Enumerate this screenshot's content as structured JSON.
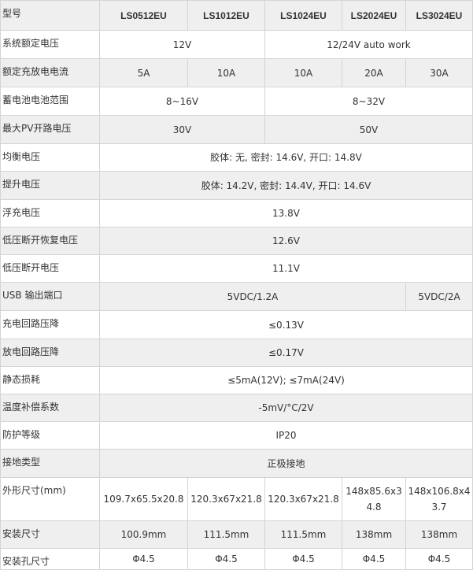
{
  "table": {
    "header": [
      "型号",
      "LS0512EU",
      "LS1012EU",
      "LS1024EU",
      "LS2024EU",
      "LS3024EU"
    ],
    "rows": [
      [
        "系统额定电压",
        "12V",
        "12/24V auto work"
      ],
      [
        "额定充放电电流",
        "5A",
        "10A",
        "10A",
        "20A",
        "30A"
      ],
      [
        "蓄电池电池范围",
        "8~16V",
        "8~32V"
      ],
      [
        "最大PV开路电压",
        "30V",
        "50V"
      ],
      [
        "均衡电压",
        "胶体: 无, 密封: 14.6V, 开口: 14.8V"
      ],
      [
        "提升电压",
        "胶体: 14.2V, 密封: 14.4V, 开口: 14.6V"
      ],
      [
        "浮充电压",
        "13.8V"
      ],
      [
        "低压断开恢复电压",
        "12.6V"
      ],
      [
        "低压断开电压",
        "11.1V"
      ],
      [
        "USB 输出端口",
        "5VDC/1.2A",
        "5VDC/2A"
      ],
      [
        "充电回路压降",
        "≤0.13V"
      ],
      [
        "放电回路压降",
        "≤0.17V"
      ],
      [
        "静态损耗",
        "≤5mA(12V); ≤7mA(24V)"
      ],
      [
        "温度补偿系数",
        "-5mV/°C/2V"
      ],
      [
        "防护等级",
        "IP20"
      ],
      [
        "接地类型",
        "正极接地"
      ],
      [
        "外形尺寸(mm)",
        "109.7x65.5x20.8",
        "120.3x67x21.8",
        "120.3x67x21.8",
        "148x85.6x34.8",
        "148x106.8x43.7"
      ],
      [
        "安装尺寸",
        "100.9mm",
        "111.5mm",
        "111.5mm",
        "138mm",
        "138mm"
      ],
      [
        "安装孔尺寸",
        "Φ4.5",
        "Φ4.5",
        "Φ4.5",
        "Φ4.5",
        "Φ4.5"
      ]
    ]
  }
}
